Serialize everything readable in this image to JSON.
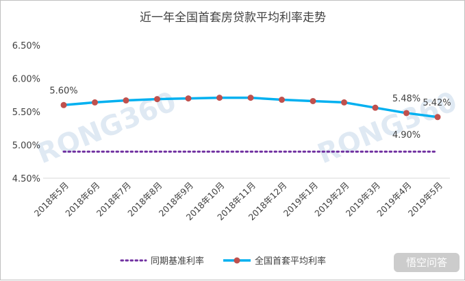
{
  "chart_data": {
    "type": "line",
    "title": "近一年全国首套房贷款平均利率走势",
    "categories": [
      "2018年5月",
      "2018年6月",
      "2018年7月",
      "2018年8月",
      "2018年9月",
      "2018年10月",
      "2018年11月",
      "2018年12月",
      "2019年1月",
      "2019年2月",
      "2019年3月",
      "2019年4月",
      "2019年5月"
    ],
    "series": [
      {
        "name": "同期基准利率",
        "style": "dotted",
        "color": "#7030a0",
        "values": [
          4.9,
          4.9,
          4.9,
          4.9,
          4.9,
          4.9,
          4.9,
          4.9,
          4.9,
          4.9,
          4.9,
          4.9,
          4.9
        ]
      },
      {
        "name": "全国首套平均利率",
        "style": "solid-markers",
        "color": "#00b0f0",
        "marker_color": "#c0504d",
        "values": [
          5.6,
          5.64,
          5.67,
          5.69,
          5.7,
          5.71,
          5.71,
          5.68,
          5.66,
          5.64,
          5.56,
          5.48,
          5.42
        ]
      }
    ],
    "yticks": [
      "6.50%",
      "6.00%",
      "5.50%",
      "5.00%",
      "4.50%"
    ],
    "ylim": [
      4.5,
      6.5
    ],
    "data_labels": [
      {
        "series": 1,
        "index": 0,
        "text": "5.60%"
      },
      {
        "series": 1,
        "index": 11,
        "text": "5.48%"
      },
      {
        "series": 1,
        "index": 12,
        "text": "5.42%"
      },
      {
        "series": 0,
        "index": 11,
        "text": "4.90%"
      }
    ],
    "legend_position": "bottom",
    "grid": false
  },
  "watermark": "RONG360",
  "corner_watermark": "悟空问答"
}
